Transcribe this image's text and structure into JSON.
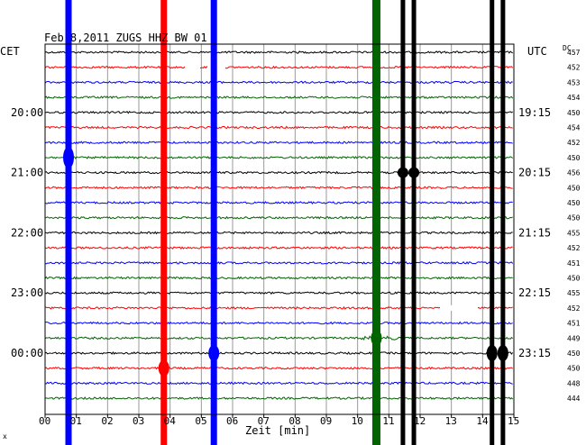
{
  "header": {
    "title": "Feb 8,2011   ZUGS HHZ BW 01",
    "left_zone": "CET",
    "right_zone": "UTC",
    "dc_label": "DC"
  },
  "x_axis": {
    "label": "Zeit [min]",
    "ticks": [
      "00",
      "01",
      "02",
      "03",
      "04",
      "05",
      "06",
      "07",
      "08",
      "09",
      "10",
      "11",
      "12",
      "13",
      "14",
      "15"
    ]
  },
  "footer_mark": "x",
  "colors": {
    "black": "#000000",
    "red": "#ff0000",
    "blue": "#0000ff",
    "green": "#006400",
    "grid": "#9a9a9a"
  },
  "chart_data": {
    "type": "line",
    "title": "Feb 8,2011   ZUGS HHZ BW 01",
    "xlabel": "Zeit [min]",
    "xlim": [
      0,
      15
    ],
    "line_minutes": 15,
    "trace_color_cycle": [
      "black",
      "red",
      "blue",
      "green"
    ],
    "left_time_labels": [
      {
        "row": 4,
        "text": "20:00"
      },
      {
        "row": 8,
        "text": "21:00"
      },
      {
        "row": 12,
        "text": "22:00"
      },
      {
        "row": 16,
        "text": "23:00"
      },
      {
        "row": 20,
        "text": "00:00"
      }
    ],
    "right_time_labels": [
      {
        "row": 4,
        "text": "19:15"
      },
      {
        "row": 8,
        "text": "20:15"
      },
      {
        "row": 12,
        "text": "21:15"
      },
      {
        "row": 16,
        "text": "22:15"
      },
      {
        "row": 20,
        "text": "23:15"
      }
    ],
    "dc_offsets": [
      457,
      452,
      453,
      454,
      450,
      454,
      452,
      450,
      456,
      450,
      450,
      450,
      455,
      452,
      451,
      450,
      455,
      452,
      451,
      449,
      450,
      450,
      448,
      444
    ],
    "events": [
      {
        "minute": 0.75,
        "color": "blue"
      },
      {
        "minute": 3.8,
        "color": "red"
      },
      {
        "minute": 5.4,
        "color": "blue"
      },
      {
        "minute": 10.6,
        "color": "green"
      },
      {
        "minute": 11.45,
        "color": "black"
      },
      {
        "minute": 11.8,
        "color": "black"
      },
      {
        "minute": 14.3,
        "color": "black"
      },
      {
        "minute": 14.65,
        "color": "black"
      }
    ],
    "grid": true
  }
}
